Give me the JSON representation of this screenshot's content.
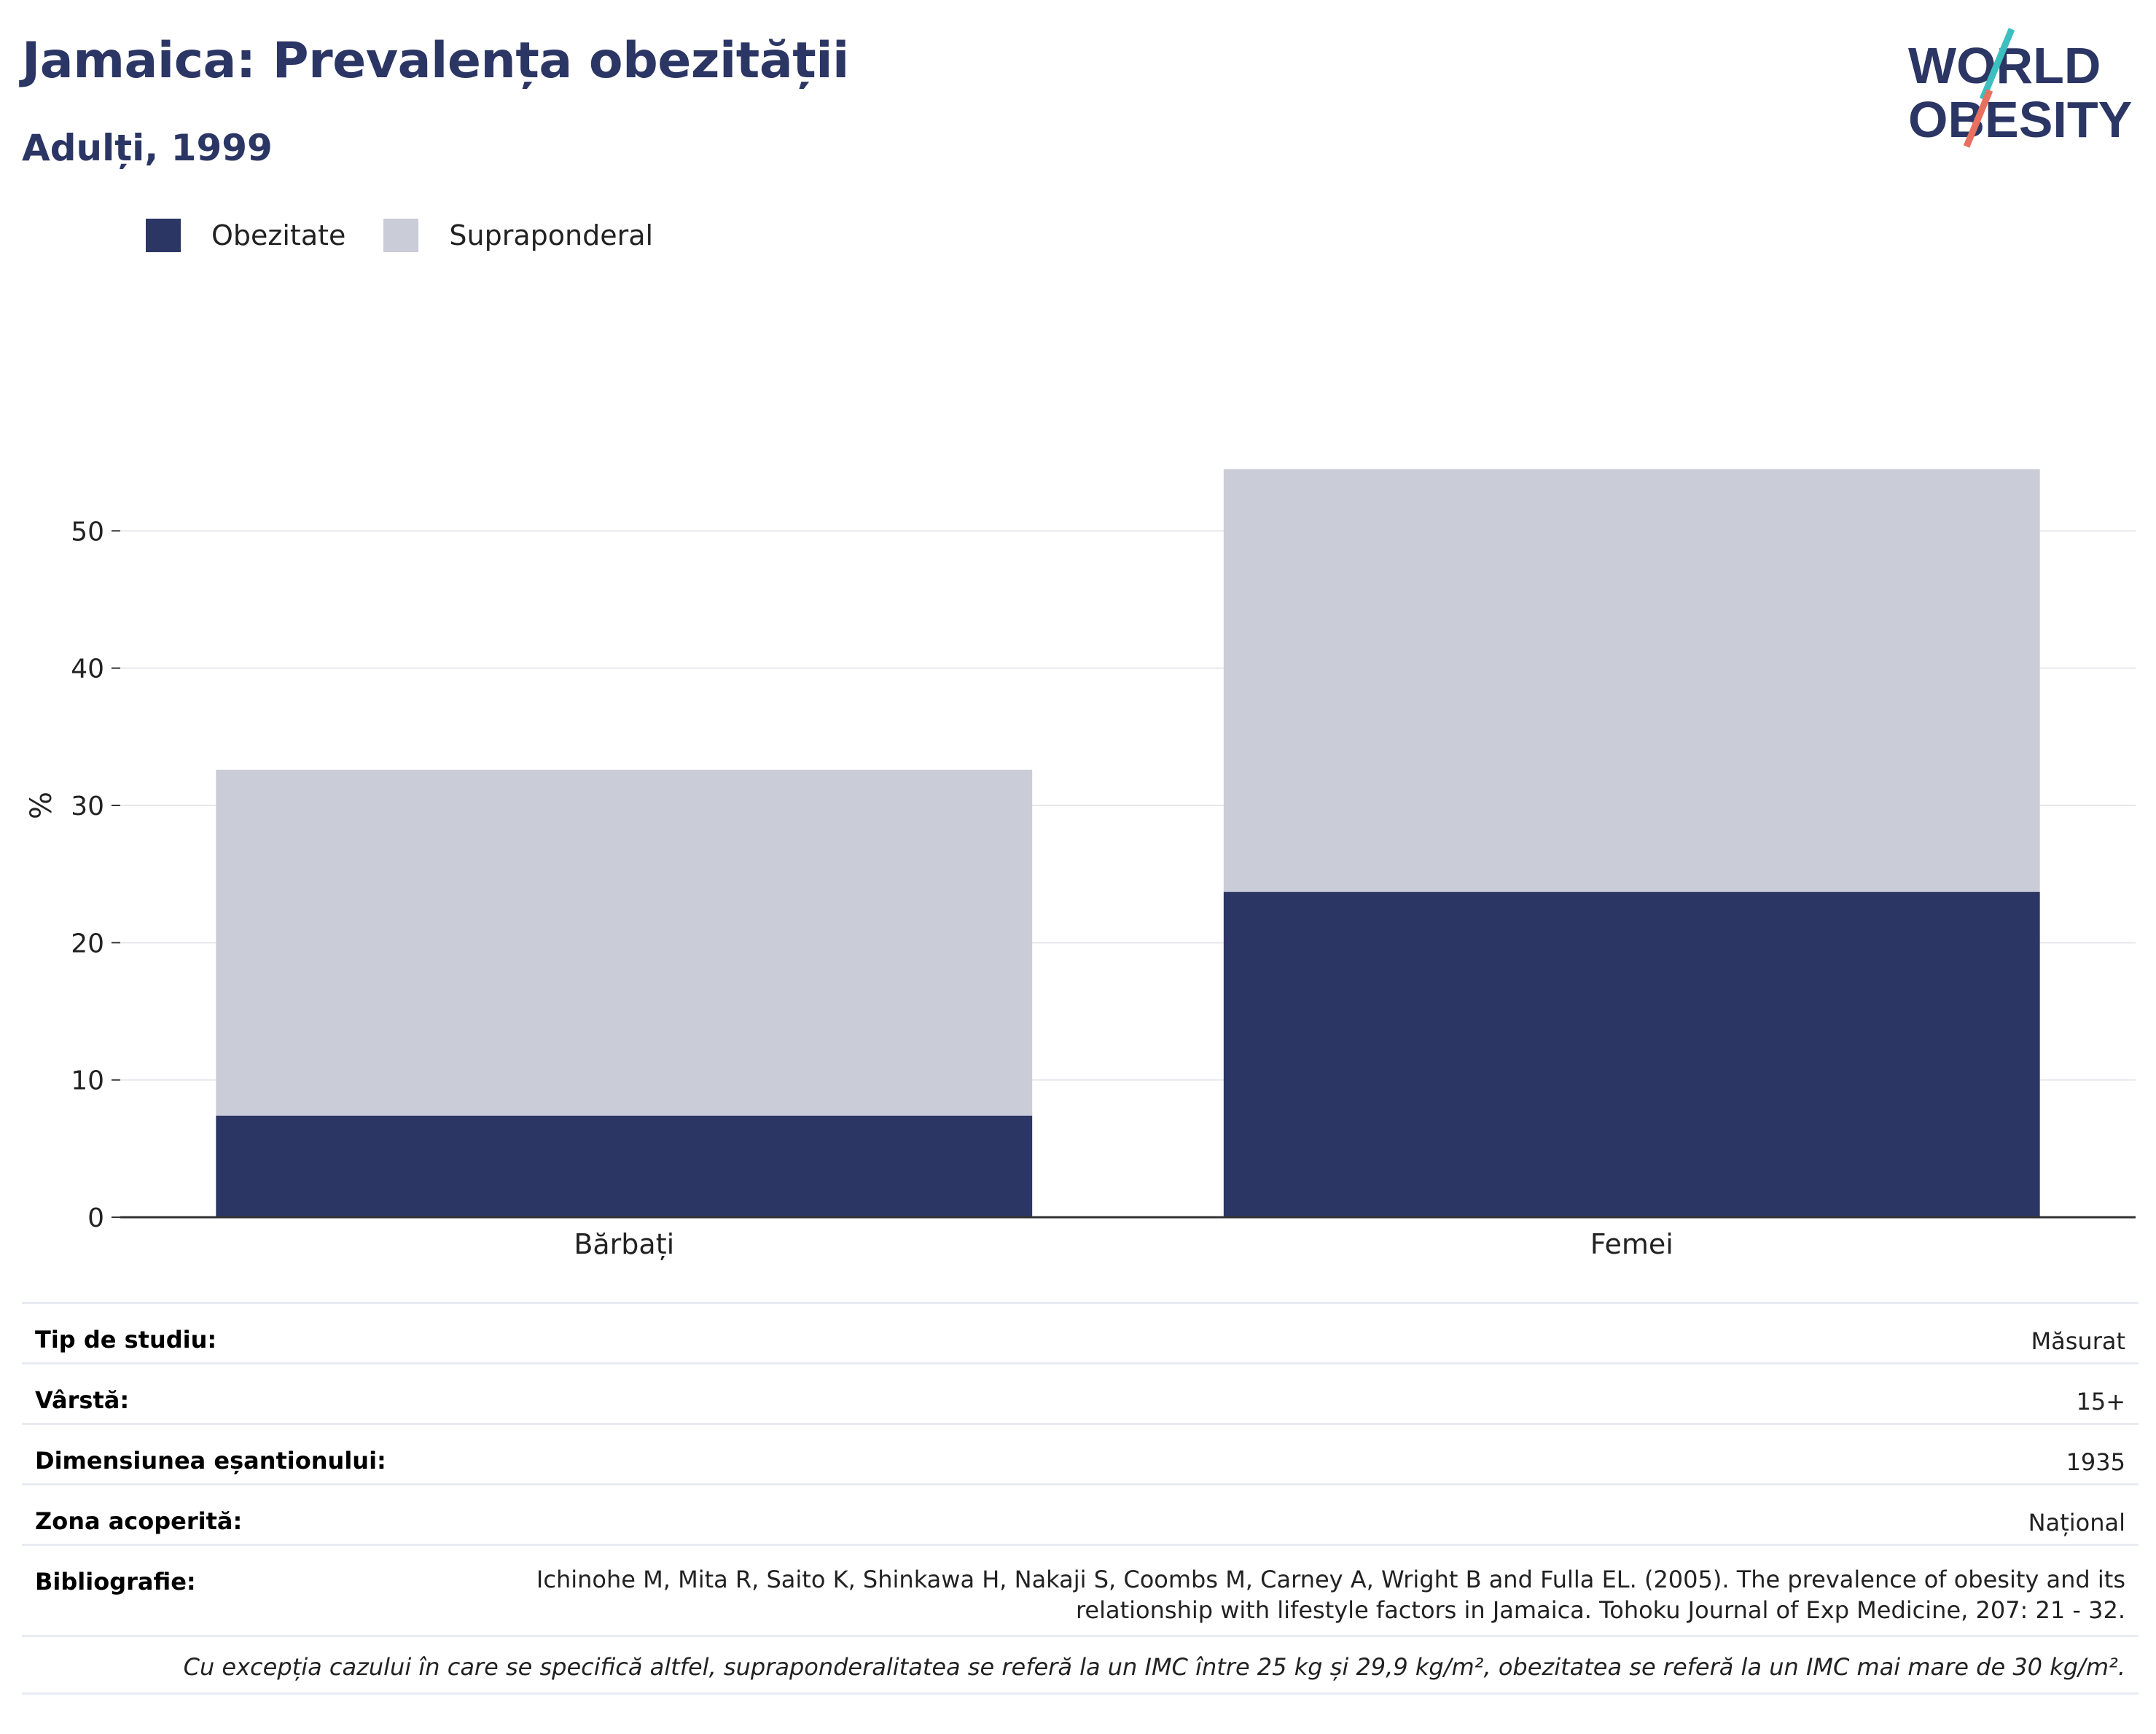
{
  "header": {
    "title": "Jamaica: Prevalența obezității",
    "subtitle": "Adulți, 1999"
  },
  "logo": {
    "line1": "WORLD",
    "line2": "OBESITY",
    "brand_color": "#2b3664",
    "accent_teal": "#3dbfbf",
    "accent_coral": "#e8705e"
  },
  "legend": [
    {
      "label": "Obezitate",
      "color": "#2b3664"
    },
    {
      "label": "Supraponderal",
      "color": "#caccd7"
    }
  ],
  "chart_data": {
    "type": "bar",
    "stacked": true,
    "categories": [
      "Bărbați",
      "Femei"
    ],
    "series": [
      {
        "name": "Obezitate",
        "color": "#2b3664",
        "values": [
          7.4,
          23.7
        ]
      },
      {
        "name": "Supraponderal",
        "color": "#caccd7",
        "values": [
          25.2,
          30.8
        ]
      }
    ],
    "ylabel": "%",
    "ylim": [
      0,
      60
    ],
    "yticks": [
      0,
      10,
      20,
      30,
      40,
      50
    ],
    "grid": true,
    "legend_position": "top-left"
  },
  "info": {
    "rows": [
      {
        "key": "Tip de studiu:",
        "value": "Măsurat"
      },
      {
        "key": "Vârstă:",
        "value": "15+"
      },
      {
        "key": "Dimensiunea eșantionului:",
        "value": "1935"
      },
      {
        "key": "Zona acoperită:",
        "value": "Național"
      },
      {
        "key": "Bibliografie:",
        "value": "Ichinohe M, Mita R, Saito K, Shinkawa H, Nakaji S, Coombs M, Carney A, Wright B and Fulla EL. (2005). The prevalence of obesity and its relationship with lifestyle factors in Jamaica. Tohoku Journal of Exp Medicine, 207: 21 - 32."
      }
    ],
    "note": "Cu excepția cazului în care se specifică altfel, supraponderalitatea se referă la un IMC între 25 kg și 29,9 kg/m², obezitatea se referă la un IMC mai mare de 30 kg/m²."
  }
}
